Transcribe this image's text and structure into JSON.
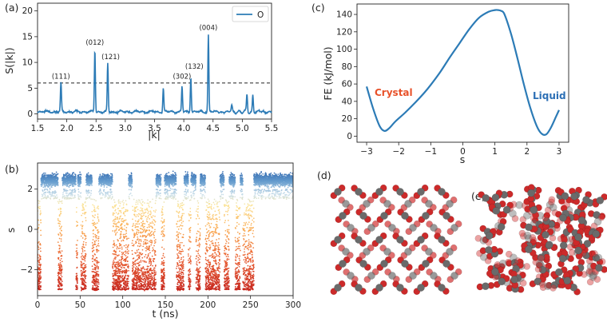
{
  "panels": {
    "a": "(a)",
    "b": "(b)",
    "c": "(c)",
    "d": "(d)",
    "e": "(e)"
  },
  "chart_data": [
    {
      "id": "a",
      "type": "line",
      "title": "",
      "xlabel": "|k|",
      "ylabel": "S(|k|)",
      "xlim": [
        1.5,
        5.5
      ],
      "ylim": [
        -1,
        21.5
      ],
      "xticks": [
        "1.5",
        "2.0",
        "2.5",
        "3.0",
        "3.5",
        "4.0",
        "4.5",
        "5.0",
        "5.5"
      ],
      "yticks": [
        "0",
        "5",
        "10",
        "15",
        "20"
      ],
      "legend": {
        "label": "O",
        "position": "top-right"
      },
      "threshold": 6,
      "baseline": 0.4,
      "peaks": [
        {
          "x": 1.9,
          "y": 6.0
        },
        {
          "x": 2.48,
          "y": 12.6
        },
        {
          "x": 2.7,
          "y": 9.8
        },
        {
          "x": 3.65,
          "y": 5.1
        },
        {
          "x": 3.97,
          "y": 5.3
        },
        {
          "x": 4.12,
          "y": 7.3
        },
        {
          "x": 4.42,
          "y": 15.4
        },
        {
          "x": 4.82,
          "y": 1.6
        },
        {
          "x": 5.08,
          "y": 3.8
        },
        {
          "x": 5.18,
          "y": 3.6
        }
      ],
      "annotations": [
        {
          "text": "(111)",
          "x": 1.9,
          "y": 6.8
        },
        {
          "text": "(012)",
          "x": 2.48,
          "y": 13.4
        },
        {
          "text": "(121)",
          "x": 2.75,
          "y": 10.6
        },
        {
          "text": "(302)",
          "x": 3.97,
          "y": 6.8
        },
        {
          "text": "(132)",
          "x": 4.18,
          "y": 8.8
        },
        {
          "text": "(004)",
          "x": 4.42,
          "y": 16.3
        }
      ]
    },
    {
      "id": "b",
      "type": "scatter",
      "title": "",
      "xlabel": "t (ns)",
      "ylabel": "s",
      "xlim": [
        0,
        300
      ],
      "ylim": [
        -3.3,
        3.3
      ],
      "xticks": [
        "0",
        "50",
        "100",
        "150",
        "200",
        "250",
        "300"
      ],
      "yticks": [
        "-2",
        "0",
        "2"
      ],
      "liquid_intervals": [
        [
          4,
          24
        ],
        [
          29,
          45
        ],
        [
          47,
          51
        ],
        [
          57,
          64
        ],
        [
          72,
          80
        ],
        [
          80,
          88
        ],
        [
          107,
          111
        ],
        [
          139,
          145
        ],
        [
          149,
          163
        ],
        [
          172,
          177
        ],
        [
          180,
          186
        ],
        [
          191,
          197
        ],
        [
          214,
          219
        ],
        [
          225,
          232
        ],
        [
          238,
          241
        ],
        [
          254,
          300
        ]
      ]
    },
    {
      "id": "c",
      "type": "line",
      "title": "",
      "xlabel": "s",
      "ylabel": "FE (kJ/mol)",
      "xlim": [
        -3.3,
        3.3
      ],
      "ylim": [
        -7,
        152
      ],
      "xticks": [
        "-3",
        "-2",
        "-1",
        "0",
        "1",
        "2",
        "3"
      ],
      "yticks": [
        "0",
        "20",
        "40",
        "60",
        "80",
        "100",
        "120",
        "140"
      ],
      "x": [
        -3.0,
        -2.8,
        -2.6,
        -2.45,
        -2.3,
        -2.1,
        -1.8,
        -1.5,
        -1.2,
        -1.0,
        -0.7,
        -0.4,
        -0.1,
        0.2,
        0.5,
        0.8,
        1.0,
        1.1,
        1.2,
        1.3,
        1.5,
        1.7,
        1.9,
        2.1,
        2.3,
        2.45,
        2.6,
        2.75,
        2.9,
        3.0
      ],
      "y": [
        57,
        32,
        12,
        6,
        9,
        17,
        27,
        38,
        50,
        59,
        74,
        91,
        107,
        123,
        136,
        143,
        145,
        145,
        144,
        140,
        118,
        90,
        60,
        33,
        12,
        3,
        2,
        10,
        22,
        30
      ],
      "labels": [
        {
          "text": "Crystal",
          "color": "#e8522a"
        },
        {
          "text": "Liquid",
          "color": "#2c6fb5"
        }
      ]
    }
  ]
}
